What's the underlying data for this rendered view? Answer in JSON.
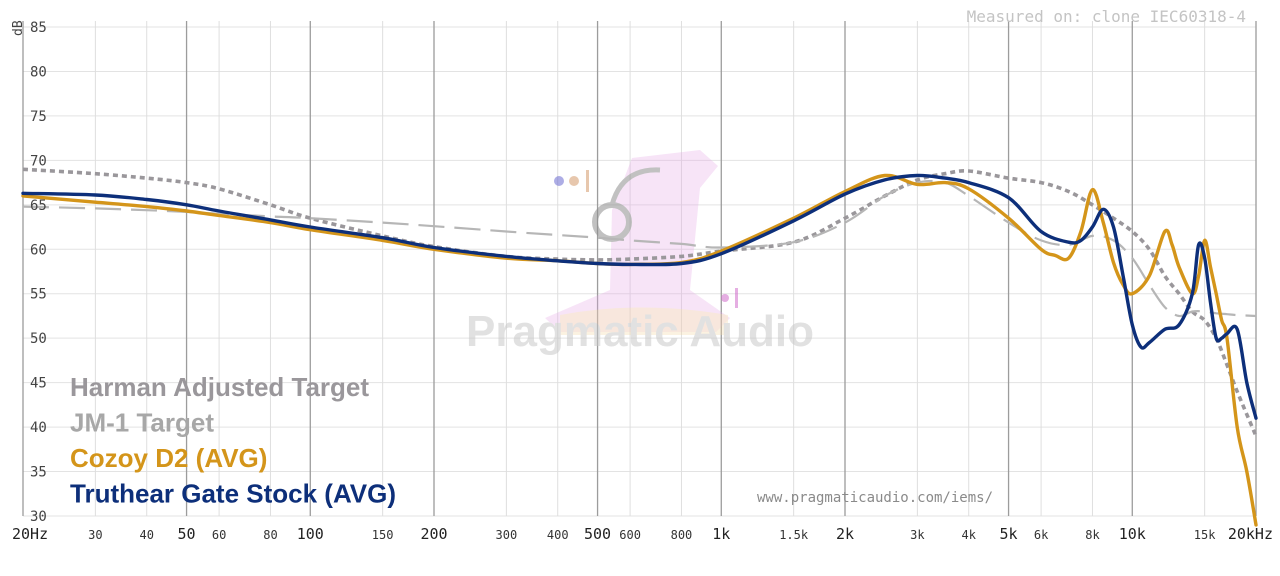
{
  "measured_on": "Measured on: clone IEC60318-4",
  "watermark": "Pragmatic Audio",
  "url": "www.pragmaticaudio.com/iems/",
  "chart_data": {
    "type": "line",
    "xscale": "log",
    "xlim": [
      20,
      20000
    ],
    "ylim": [
      30,
      85
    ],
    "ylabel": "dB",
    "yticks": [
      30,
      35,
      40,
      45,
      50,
      55,
      60,
      65,
      70,
      75,
      80,
      85
    ],
    "xticks": [
      {
        "v": 20,
        "label": "20Hz",
        "major": true
      },
      {
        "v": 30,
        "label": "30",
        "major": false
      },
      {
        "v": 40,
        "label": "40",
        "major": false
      },
      {
        "v": 50,
        "label": "50",
        "major": true
      },
      {
        "v": 60,
        "label": "60",
        "major": false
      },
      {
        "v": 80,
        "label": "80",
        "major": false
      },
      {
        "v": 100,
        "label": "100",
        "major": true
      },
      {
        "v": 150,
        "label": "150",
        "major": false
      },
      {
        "v": 200,
        "label": "200",
        "major": true
      },
      {
        "v": 300,
        "label": "300",
        "major": false
      },
      {
        "v": 400,
        "label": "400",
        "major": false
      },
      {
        "v": 500,
        "label": "500",
        "major": true
      },
      {
        "v": 600,
        "label": "600",
        "major": false
      },
      {
        "v": 800,
        "label": "800",
        "major": false
      },
      {
        "v": 1000,
        "label": "1k",
        "major": true
      },
      {
        "v": 1500,
        "label": "1.5k",
        "major": false
      },
      {
        "v": 2000,
        "label": "2k",
        "major": true
      },
      {
        "v": 3000,
        "label": "3k",
        "major": false
      },
      {
        "v": 4000,
        "label": "4k",
        "major": false
      },
      {
        "v": 5000,
        "label": "5k",
        "major": true
      },
      {
        "v": 6000,
        "label": "6k",
        "major": false
      },
      {
        "v": 8000,
        "label": "8k",
        "major": false
      },
      {
        "v": 10000,
        "label": "10k",
        "major": true
      },
      {
        "v": 15000,
        "label": "15k",
        "major": false
      },
      {
        "v": 20000,
        "label": "20kHz",
        "major": true
      }
    ],
    "grid": true,
    "legend_position": "bottom-left",
    "series": [
      {
        "name": "Harman Adjusted Target",
        "color": "#9a979b",
        "style": "dotted",
        "x": [
          20,
          30,
          40,
          50,
          60,
          80,
          100,
          150,
          200,
          300,
          400,
          500,
          600,
          800,
          1000,
          1500,
          2000,
          2500,
          3000,
          3500,
          4000,
          5000,
          6000,
          7000,
          8000,
          9000,
          10000,
          11000,
          12000,
          13000,
          14000,
          15000,
          16000,
          17000,
          18000,
          20000
        ],
        "y": [
          69,
          68.5,
          68,
          67.5,
          66.8,
          65,
          63.5,
          61.5,
          60.3,
          59.2,
          58.9,
          58.8,
          58.9,
          59.2,
          59.8,
          60.8,
          63.5,
          66,
          67.8,
          68.5,
          68.8,
          68,
          67.5,
          66.5,
          65,
          63.5,
          62,
          60,
          57,
          55,
          53,
          52,
          50,
          47,
          44,
          39
        ]
      },
      {
        "name": "JM-1 Target",
        "color": "#b6b6b6",
        "style": "dashed",
        "x": [
          20,
          30,
          40,
          50,
          60,
          80,
          100,
          150,
          200,
          300,
          400,
          500,
          600,
          800,
          1000,
          1500,
          2000,
          2500,
          3000,
          3500,
          4000,
          5000,
          6000,
          7000,
          8000,
          9000,
          10000,
          11000,
          12000,
          13000,
          14000,
          15000,
          16000,
          17000,
          18000,
          20000
        ],
        "y": [
          64.8,
          64.6,
          64.4,
          64.2,
          64,
          63.7,
          63.5,
          63,
          62.6,
          62,
          61.6,
          61.3,
          61,
          60.6,
          60.2,
          60.8,
          63,
          66,
          67.5,
          67.5,
          66,
          63,
          61,
          60.5,
          61.5,
          61,
          59,
          56,
          53.5,
          52.5,
          53,
          53,
          52.8,
          52.7,
          52.6,
          52.5
        ]
      },
      {
        "name": "Cozoy D2 (AVG)",
        "color": "#d4951a",
        "style": "solid",
        "x": [
          20,
          30,
          40,
          50,
          60,
          80,
          100,
          150,
          200,
          300,
          400,
          500,
          600,
          800,
          1000,
          1500,
          2000,
          2500,
          3000,
          3500,
          4000,
          5000,
          6000,
          6500,
          7000,
          7500,
          8000,
          8500,
          9000,
          9500,
          10000,
          11000,
          12000,
          12500,
          13000,
          14000,
          14500,
          15000,
          15500,
          16000,
          16500,
          17000,
          18000,
          19000,
          20000
        ],
        "y": [
          66,
          65.3,
          64.8,
          64.3,
          63.8,
          63,
          62.2,
          61,
          60,
          59,
          58.7,
          58.4,
          58.3,
          58.5,
          59.8,
          63.5,
          66.5,
          68.3,
          67.3,
          67.5,
          66.8,
          63.5,
          60,
          59.3,
          59,
          62,
          66.7,
          63,
          58.5,
          56,
          55,
          57,
          62,
          60.5,
          58,
          55,
          57,
          61,
          58,
          55,
          52,
          50,
          40,
          35,
          29
        ]
      },
      {
        "name": "Truthear Gate Stock (AVG)",
        "color": "#0d2f7a",
        "style": "solid",
        "x": [
          20,
          30,
          40,
          50,
          60,
          80,
          100,
          150,
          200,
          300,
          400,
          500,
          600,
          800,
          1000,
          1500,
          2000,
          2500,
          3000,
          3500,
          4000,
          5000,
          6000,
          7000,
          7500,
          8000,
          8500,
          9000,
          9500,
          10000,
          10500,
          11000,
          12000,
          13000,
          14000,
          14500,
          15000,
          15500,
          16000,
          16500,
          17000,
          18000,
          19000,
          20000
        ],
        "y": [
          66.3,
          66.1,
          65.6,
          65,
          64.3,
          63.3,
          62.5,
          61.3,
          60.2,
          59.2,
          58.7,
          58.4,
          58.3,
          58.4,
          59.5,
          63.2,
          66.2,
          67.8,
          68.3,
          68,
          67.5,
          65.8,
          62,
          60.8,
          61,
          62.5,
          64.5,
          62.5,
          57,
          51.5,
          49,
          49.5,
          51,
          51.5,
          55,
          60.5,
          59,
          54,
          50,
          50,
          50.5,
          51,
          45,
          41
        ]
      }
    ]
  }
}
